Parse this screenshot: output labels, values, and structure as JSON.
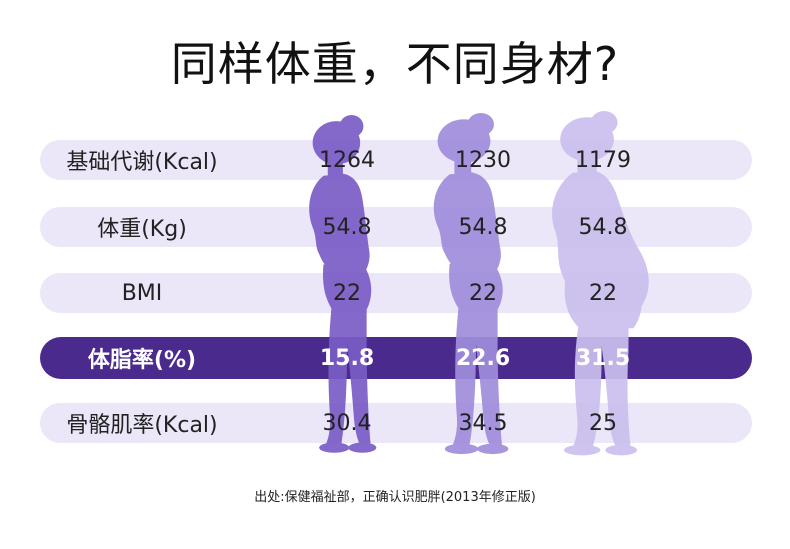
{
  "title": "同样体重，不同身材?",
  "rows": [
    {
      "label": "基础代谢(Kcal)",
      "values": [
        "1264",
        "1230",
        "1179"
      ]
    },
    {
      "label": "体重(Kg)",
      "values": [
        "54.8",
        "54.8",
        "54.8"
      ]
    },
    {
      "label": "BMI",
      "values": [
        "22",
        "22",
        "22"
      ]
    },
    {
      "label": "体脂率(%)",
      "values": [
        "15.8",
        "22.6",
        "31.5"
      ]
    },
    {
      "label": "骨骼肌率(Kcal)",
      "values": [
        "30.4",
        "34.5",
        "25"
      ]
    }
  ],
  "source": "出处:保健福祉部，正确认识肥胖(2013年修正版)",
  "colors": {
    "row_bg": "#ebe6f8",
    "highlight_bg": "#4b2a8e",
    "figure_1": "#7a5cc6",
    "figure_2": "#a08ddc",
    "figure_3": "#cbbfee"
  }
}
